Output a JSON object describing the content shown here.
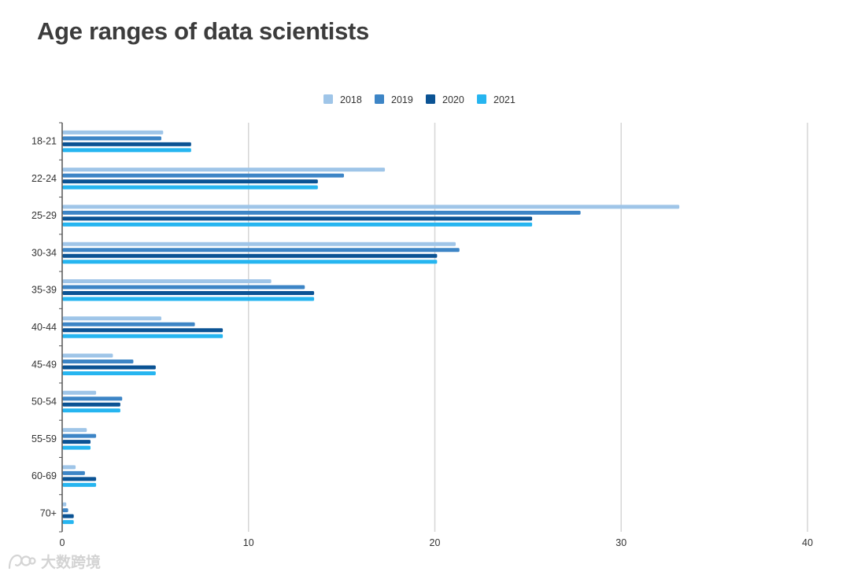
{
  "page": {
    "title": "Age ranges of data scientists"
  },
  "chart_data": {
    "type": "bar",
    "orientation": "horizontal",
    "title": "Age ranges of data scientists",
    "xlabel": "",
    "ylabel": "",
    "xlim": [
      0,
      40
    ],
    "xticks": [
      0,
      10,
      20,
      30,
      40
    ],
    "grid": true,
    "legend_position": "top",
    "categories": [
      "18-21",
      "22-24",
      "25-29",
      "30-34",
      "35-39",
      "40-44",
      "45-49",
      "50-54",
      "55-59",
      "60-69",
      "70+"
    ],
    "series": [
      {
        "name": "2018",
        "color": "#9fc5e8",
        "values": [
          5.4,
          17.3,
          33.1,
          21.1,
          11.2,
          5.3,
          2.7,
          1.8,
          1.3,
          0.7,
          0.2
        ]
      },
      {
        "name": "2019",
        "color": "#3d85c6",
        "values": [
          5.3,
          15.1,
          27.8,
          21.3,
          13.0,
          7.1,
          3.8,
          3.2,
          1.8,
          1.2,
          0.3
        ]
      },
      {
        "name": "2020",
        "color": "#0b5394",
        "values": [
          6.9,
          13.7,
          25.2,
          20.1,
          13.5,
          8.6,
          5.0,
          3.1,
          1.5,
          1.8,
          0.6
        ]
      },
      {
        "name": "2021",
        "color": "#26b5f0",
        "values": [
          6.9,
          13.7,
          25.2,
          20.1,
          13.5,
          8.6,
          5.0,
          3.1,
          1.5,
          1.8,
          0.6
        ]
      }
    ]
  },
  "watermark": {
    "text": "大数跨境",
    "icon": "brand-logo-icon"
  }
}
